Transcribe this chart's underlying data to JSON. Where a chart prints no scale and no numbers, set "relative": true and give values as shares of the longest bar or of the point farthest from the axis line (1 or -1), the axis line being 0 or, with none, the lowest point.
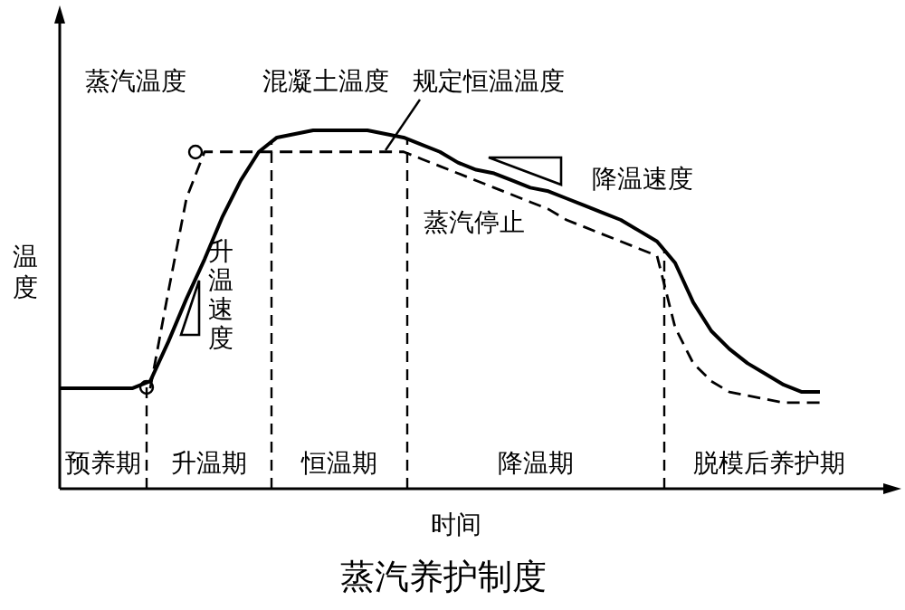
{
  "chart_data": {
    "type": "line",
    "title": "蒸汽养护制度",
    "xlabel": "时间",
    "ylabel": "温度",
    "relative": true,
    "legend": false,
    "categories": [
      null,
      null,
      null,
      null,
      null,
      null,
      null,
      null,
      null,
      null,
      null,
      null,
      null,
      null,
      null,
      null,
      null,
      null,
      null,
      null,
      null,
      null,
      null,
      null,
      null,
      null,
      null,
      null,
      null,
      null,
      null,
      null,
      null,
      null,
      null,
      null,
      null,
      null,
      null,
      null,
      null,
      null,
      null,
      null,
      null,
      null
    ],
    "series": [
      {
        "name": "混凝土温度",
        "color": "#000000",
        "line_style": "solid",
        "values": [
          0.28,
          0.28,
          0.28,
          0.28,
          0.28,
          0.3,
          0.41,
          0.53,
          0.64,
          0.76,
          0.86,
          0.94,
          0.98,
          0.99,
          1,
          1,
          1,
          1,
          0.99,
          0.98,
          0.96,
          0.94,
          0.91,
          0.89,
          0.88,
          0.86,
          0.84,
          0.83,
          0.81,
          0.79,
          0.77,
          0.75,
          0.72,
          0.69,
          0.63,
          0.52,
          0.44,
          0.39,
          0.35,
          0.32,
          0.29,
          0.27,
          0.27,
          null,
          null,
          null
        ]
      },
      {
        "name": "蒸汽温度",
        "color": "#000000",
        "line_style": "dashed",
        "values": [
          null,
          null,
          null,
          null,
          null,
          0.28,
          0.55,
          0.81,
          0.94,
          0.94,
          0.94,
          0.94,
          0.94,
          0.94,
          0.94,
          0.94,
          0.94,
          0.94,
          0.94,
          0.94,
          0.92,
          0.9,
          0.88,
          0.86,
          0.84,
          0.82,
          0.8,
          0.78,
          0.75,
          0.73,
          0.71,
          0.69,
          0.67,
          0.65,
          0.45,
          0.35,
          0.3,
          0.27,
          0.26,
          0.25,
          0.24,
          0.24,
          0.24,
          null,
          null,
          null
        ]
      }
    ],
    "annotations": [
      "规定恒温温度",
      "降温速度",
      "蒸汽停止",
      "升温速度",
      "预养期",
      "升温期",
      "恒温期",
      "降温期",
      "脱模后养护期"
    ]
  }
}
